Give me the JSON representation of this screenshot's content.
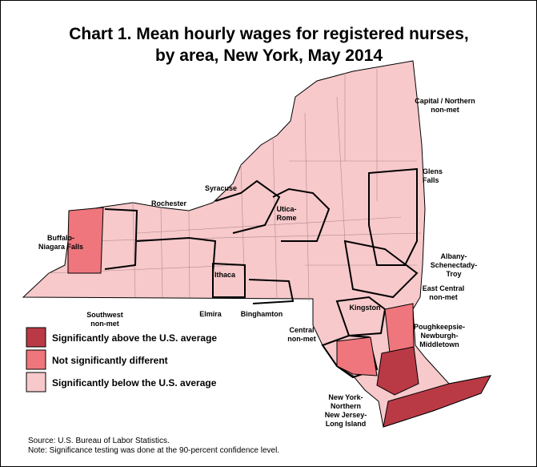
{
  "title": [
    "Chart 1. Mean hourly wages for registered nurses,",
    "by area, New York, May 2014"
  ],
  "areas": [
    {
      "lines": [
        "Capital / Northern",
        "non-met"
      ]
    },
    {
      "lines": [
        "Glens",
        "Falls"
      ]
    },
    {
      "lines": [
        "Syracuse"
      ]
    },
    {
      "lines": [
        "Rochester"
      ]
    },
    {
      "lines": [
        "Utica-",
        "Rome"
      ]
    },
    {
      "lines": [
        "Buffalo-",
        "Niagara Falls"
      ]
    },
    {
      "lines": [
        "Albany-",
        "Schenectady-",
        "Troy"
      ]
    },
    {
      "lines": [
        "Ithaca"
      ]
    },
    {
      "lines": [
        "East Central",
        "non-met"
      ]
    },
    {
      "lines": [
        "Kingston"
      ]
    },
    {
      "lines": [
        "Southwest",
        "non-met"
      ]
    },
    {
      "lines": [
        "Elmira"
      ]
    },
    {
      "lines": [
        "Binghamton"
      ]
    },
    {
      "lines": [
        "Central",
        "non-met"
      ]
    },
    {
      "lines": [
        "Poughkeepsie-",
        "Newburgh-",
        "Middletown"
      ]
    },
    {
      "lines": [
        "New York-",
        "Northern",
        "New Jersey-",
        "Long Island"
      ]
    }
  ],
  "legend": [
    "Significantly above the U.S. average",
    "Not significantly different",
    "Significantly below the U.S. average"
  ],
  "notes": [
    "Source: U.S. Bureau of Labor Statistics.",
    "Note: Significance testing was done at the 90-percent confidence level."
  ]
}
